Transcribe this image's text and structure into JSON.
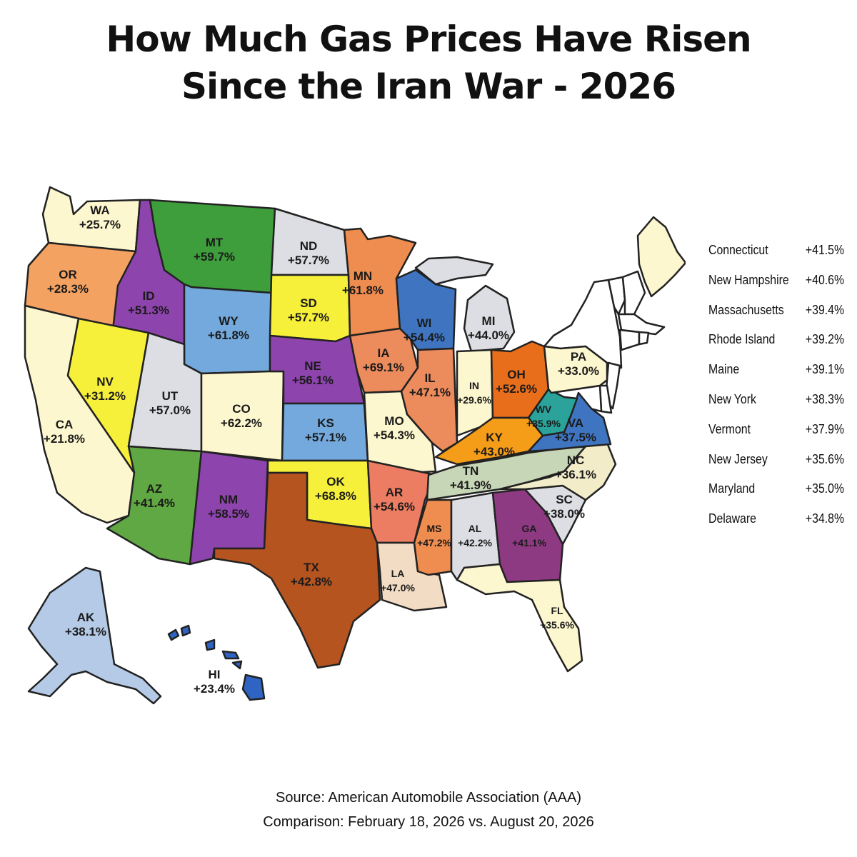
{
  "title": {
    "line1": "How Much Gas Prices Have Risen",
    "line2": "Since the Iran War - 2026"
  },
  "source": "Source: American Automobile Association (AAA)",
  "comparison": "Comparison: February 18, 2026 vs. August 20, 2026",
  "states": [
    {
      "abbr": "WA",
      "value": "+25.7%",
      "color": "#fdf7cf"
    },
    {
      "abbr": "OR",
      "value": "+28.3%",
      "color": "#f4a261"
    },
    {
      "abbr": "CA",
      "value": "+21.8%",
      "color": "#fdf7cf"
    },
    {
      "abbr": "ID",
      "value": "+51.3%",
      "color": "#8e44ad"
    },
    {
      "abbr": "NV",
      "value": "+31.2%",
      "color": "#f7f03a"
    },
    {
      "abbr": "MT",
      "value": "+59.7%",
      "color": "#3f9e3c"
    },
    {
      "abbr": "WY",
      "value": "+61.8%",
      "color": "#73a9dc"
    },
    {
      "abbr": "UT",
      "value": "+57.0%",
      "color": "#dcdee3"
    },
    {
      "abbr": "CO",
      "value": "+62.2%",
      "color": "#fdf7cf"
    },
    {
      "abbr": "AZ",
      "value": "+41.4%",
      "color": "#5fa843"
    },
    {
      "abbr": "NM",
      "value": "+58.5%",
      "color": "#8e44ad"
    },
    {
      "abbr": "ND",
      "value": "+57.7%",
      "color": "#dcdee3"
    },
    {
      "abbr": "SD",
      "value": "+57.7%",
      "color": "#f7f03a"
    },
    {
      "abbr": "NE",
      "value": "+56.1%",
      "color": "#8e44ad"
    },
    {
      "abbr": "KS",
      "value": "+57.1%",
      "color": "#73a9dc"
    },
    {
      "abbr": "OK",
      "value": "+68.8%",
      "color": "#f7f03a"
    },
    {
      "abbr": "TX",
      "value": "+42.8%",
      "color": "#b5541f"
    },
    {
      "abbr": "MN",
      "value": "+61.8%",
      "color": "#ef8c4f"
    },
    {
      "abbr": "IA",
      "value": "+69.1%",
      "color": "#ec8b5c"
    },
    {
      "abbr": "MO",
      "value": "+54.3%",
      "color": "#fdf7cf"
    },
    {
      "abbr": "AR",
      "value": "+54.6%",
      "color": "#ec7d62"
    },
    {
      "abbr": "LA",
      "value": "+47.0%",
      "color": "#f2dcc4"
    },
    {
      "abbr": "WI",
      "value": "+54.4%",
      "color": "#3f75c0"
    },
    {
      "abbr": "IL",
      "value": "+47.1%",
      "color": "#ec8b5c"
    },
    {
      "abbr": "MI",
      "value": "+44.0%",
      "color": "#dcdee3"
    },
    {
      "abbr": "IN",
      "value": "+29.6%",
      "color": "#fdf7cf"
    },
    {
      "abbr": "OH",
      "value": "+52.6%",
      "color": "#e86e1c"
    },
    {
      "abbr": "KY",
      "value": "+43.0%",
      "color": "#f59d19"
    },
    {
      "abbr": "TN",
      "value": "+41.9%",
      "color": "#c7d6b6"
    },
    {
      "abbr": "MS",
      "value": "+47.2%",
      "color": "#ef8c4f"
    },
    {
      "abbr": "AL",
      "value": "+42.2%",
      "color": "#dcdee3"
    },
    {
      "abbr": "GA",
      "value": "+41.1%",
      "color": "#8e3a82"
    },
    {
      "abbr": "FL",
      "value": "+35.6%",
      "color": "#fdf7cf"
    },
    {
      "abbr": "SC",
      "value": "+38.0%",
      "color": "#dcdee3"
    },
    {
      "abbr": "NC",
      "value": "+36.1%",
      "color": "#f3ecc9"
    },
    {
      "abbr": "VA",
      "value": "+37.5%",
      "color": "#3f75c0"
    },
    {
      "abbr": "WV",
      "value": "+35.9%",
      "color": "#2ba39a"
    },
    {
      "abbr": "PA",
      "value": "+33.0%",
      "color": "#fdf7cf"
    },
    {
      "abbr": "AK",
      "value": "+38.1%",
      "color": "#b4cae6"
    },
    {
      "abbr": "HI",
      "value": "+23.4%",
      "color": "#2f64c2"
    }
  ],
  "northeast": [
    {
      "name": "Connecticut",
      "value": "+41.5%"
    },
    {
      "name": "New Hampshire",
      "value": "+40.6%"
    },
    {
      "name": "Massachusetts",
      "value": "+39.4%"
    },
    {
      "name": "Rhode Island",
      "value": "+39.2%"
    },
    {
      "name": "Maine",
      "value": "+39.1%"
    },
    {
      "name": "New York",
      "value": "+38.3%"
    },
    {
      "name": "Vermont",
      "value": "+37.9%"
    },
    {
      "name": "New Jersey",
      "value": "+35.6%"
    },
    {
      "name": "Maryland",
      "value": "+35.0%"
    },
    {
      "name": "Delaware",
      "value": "+34.8%"
    }
  ],
  "unlabeled_state_colors": {
    "northeast": "#ffffff",
    "maine": "#fdf7cf"
  }
}
